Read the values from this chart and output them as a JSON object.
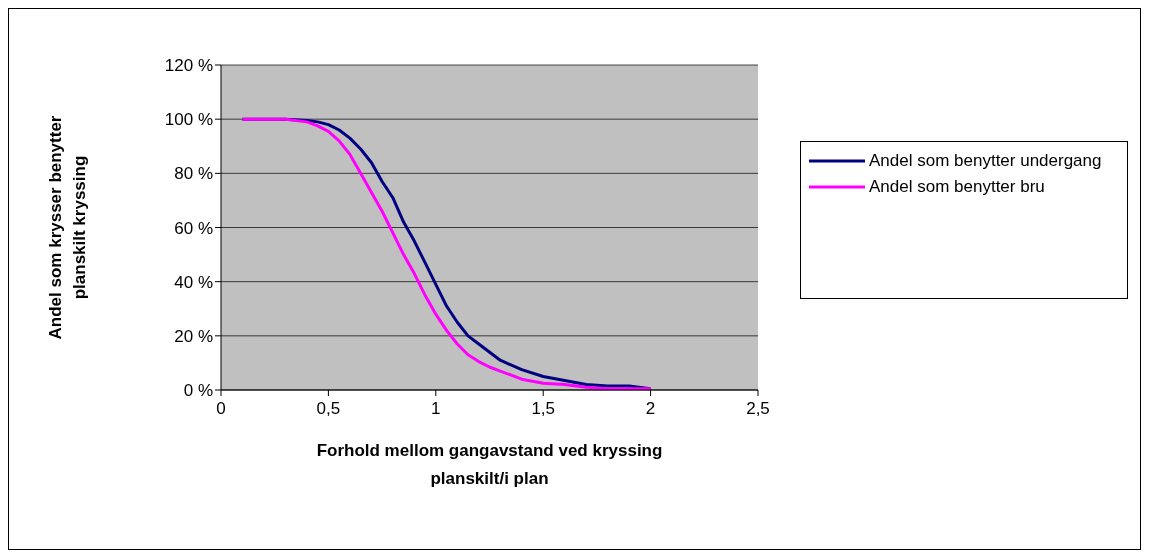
{
  "chart_data": {
    "type": "line",
    "xlabel": "Forhold mellom gangavstand ved kryssing planskilt/i plan",
    "ylabel": "Andel som krysser benytter planskilt kryssing",
    "xlim": [
      0,
      2.5
    ],
    "xticks": [
      0,
      {
        "value": 0.5,
        "label": "0,5"
      },
      1,
      {
        "value": 1.5,
        "label": "1,5"
      },
      2,
      {
        "value": 2.5,
        "label": "2,5"
      }
    ],
    "ylim": [
      0,
      120
    ],
    "yticks": [
      {
        "value": 0,
        "label": "0 %"
      },
      {
        "value": 20,
        "label": "20 %"
      },
      {
        "value": 40,
        "label": "40 %"
      },
      {
        "value": 60,
        "label": "60 %"
      },
      {
        "value": 80,
        "label": "80 %"
      },
      {
        "value": 100,
        "label": "100 %"
      },
      {
        "value": 120,
        "label": "120 %"
      }
    ],
    "grid": "y",
    "legend": "right",
    "marker": "none",
    "line_style": "solid",
    "series": [
      {
        "name": "Andel som benytter undergang",
        "color": "#000080",
        "x": [
          0.1,
          0.2,
          0.3,
          0.4,
          0.45,
          0.5,
          0.55,
          0.6,
          0.65,
          0.7,
          0.75,
          0.8,
          0.85,
          0.9,
          0.95,
          1.0,
          1.05,
          1.1,
          1.15,
          1.2,
          1.3,
          1.4,
          1.5,
          1.6,
          1.7,
          1.8,
          1.9,
          2.0
        ],
        "values": [
          100,
          100,
          100,
          99.5,
          99,
          98,
          96,
          93,
          89,
          84,
          77,
          71,
          62,
          55,
          47,
          39,
          31,
          25,
          20,
          17,
          11,
          7.5,
          5,
          3.5,
          2,
          1.5,
          1.5,
          0.5
        ]
      },
      {
        "name": "Andel som benytter bru",
        "color": "#ff00ff",
        "x": [
          0.1,
          0.2,
          0.3,
          0.4,
          0.45,
          0.5,
          0.55,
          0.6,
          0.65,
          0.7,
          0.75,
          0.8,
          0.85,
          0.9,
          0.95,
          1.0,
          1.05,
          1.1,
          1.15,
          1.2,
          1.25,
          1.3,
          1.4,
          1.5,
          1.6,
          1.7,
          1.8,
          2.0
        ],
        "values": [
          100,
          100,
          100,
          99,
          97.5,
          95.5,
          92,
          87,
          80,
          73,
          66,
          58,
          50,
          43,
          35,
          28,
          22,
          17,
          13,
          10.5,
          8.5,
          7,
          4,
          2.5,
          2,
          1,
          0.5,
          0.5
        ]
      }
    ]
  }
}
